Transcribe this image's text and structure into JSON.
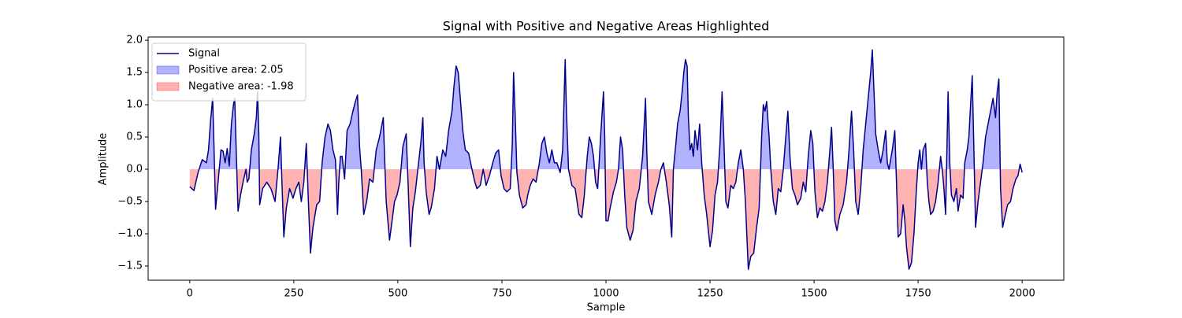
{
  "chart_data": {
    "type": "line",
    "title": "Signal with Positive and Negative Areas Highlighted",
    "x_label": "Sample",
    "y_label": "Amplitude",
    "xlim": [
      -100,
      2100
    ],
    "ylim": [
      -1.72,
      2.05
    ],
    "xticks": [
      0,
      250,
      500,
      750,
      1000,
      1250,
      1500,
      1750,
      2000
    ],
    "yticks": [
      {
        "value": -1.5,
        "label": "−1.5"
      },
      {
        "value": -1.0,
        "label": "−1.0"
      },
      {
        "value": -0.5,
        "label": "−0.5"
      },
      {
        "value": 0.0,
        "label": "0.0"
      },
      0.5,
      {
        "value": 1.0,
        "label": "1.0"
      },
      1.5,
      {
        "value": 2.0,
        "label": "2.0"
      }
    ],
    "legend": "upper left",
    "fills": [
      {
        "name": "Positive area: 2.05",
        "color": "#0000ff"
      },
      {
        "name": "Negative area: -1.98",
        "color": "#ff0000"
      }
    ],
    "x": [
      0,
      10,
      20,
      30,
      40,
      45,
      50,
      55,
      58,
      62,
      68,
      75,
      80,
      85,
      90,
      95,
      100,
      105,
      108,
      112,
      116,
      122,
      128,
      135,
      138,
      142,
      148,
      155,
      160,
      163,
      166,
      168,
      175,
      185,
      195,
      205,
      212,
      218,
      222,
      226,
      232,
      240,
      248,
      255,
      262,
      268,
      274,
      280,
      285,
      290,
      296,
      305,
      312,
      318,
      325,
      332,
      338,
      344,
      350,
      355,
      358,
      362,
      366,
      372,
      378,
      385,
      392,
      398,
      403,
      408,
      412,
      418,
      425,
      432,
      440,
      448,
      456,
      462,
      465,
      468,
      472,
      476,
      480,
      486,
      492,
      498,
      505,
      512,
      520,
      525,
      530,
      536,
      542,
      548,
      555,
      560,
      563,
      568,
      575,
      580,
      588,
      594,
      600,
      608,
      615,
      622,
      630,
      635,
      640,
      645,
      650,
      656,
      662,
      670,
      678,
      685,
      690,
      698,
      705,
      712,
      720,
      728,
      735,
      742,
      748,
      755,
      762,
      770,
      775,
      778,
      782,
      786,
      792,
      800,
      808,
      812,
      818,
      825,
      832,
      840,
      846,
      852,
      858,
      864,
      870,
      876,
      882,
      890,
      896,
      902,
      905,
      910,
      918,
      926,
      935,
      942,
      948,
      955,
      960,
      965,
      970,
      975,
      980,
      988,
      994,
      997,
      1000,
      1005,
      1010,
      1018,
      1025,
      1030,
      1035,
      1040,
      1045,
      1050,
      1058,
      1065,
      1072,
      1080,
      1088,
      1095,
      1098,
      1102,
      1110,
      1118,
      1126,
      1132,
      1138,
      1145,
      1152,
      1158,
      1162,
      1168,
      1172,
      1178,
      1183,
      1187,
      1191,
      1195,
      1198,
      1202,
      1206,
      1210,
      1214,
      1220,
      1225,
      1230,
      1236,
      1242,
      1250,
      1256,
      1262,
      1268,
      1274,
      1279,
      1283,
      1288,
      1293,
      1300,
      1306,
      1312,
      1318,
      1324,
      1330,
      1335,
      1342,
      1348,
      1355,
      1362,
      1368,
      1374,
      1378,
      1382,
      1386,
      1392,
      1396,
      1402,
      1408,
      1414,
      1420,
      1426,
      1432,
      1437,
      1442,
      1448,
      1454,
      1460,
      1468,
      1474,
      1480,
      1486,
      1492,
      1497,
      1502,
      1508,
      1514,
      1520,
      1526,
      1532,
      1538,
      1542,
      1546,
      1550,
      1555,
      1562,
      1570,
      1578,
      1584,
      1590,
      1595,
      1600,
      1606,
      1612,
      1618,
      1624,
      1630,
      1636,
      1640,
      1644,
      1648,
      1654,
      1660,
      1666,
      1672,
      1676,
      1680,
      1688,
      1694,
      1698,
      1702,
      1708,
      1714,
      1718,
      1722,
      1728,
      1734,
      1740,
      1746,
      1750,
      1754,
      1758,
      1762,
      1768,
      1772,
      1776,
      1780,
      1786,
      1792,
      1798,
      1804,
      1808,
      1812,
      1816,
      1822,
      1826,
      1830,
      1836,
      1842,
      1846,
      1852,
      1858,
      1862,
      1868,
      1872,
      1876,
      1880,
      1884,
      1888,
      1894,
      1900,
      1906,
      1912,
      1918,
      1924,
      1930,
      1936,
      1940,
      1944,
      1948,
      1953,
      1958,
      1965,
      1972,
      1978,
      1985,
      1990,
      1995,
      2000
    ],
    "series": [
      {
        "name": "Signal",
        "color": "#00008b",
        "values": [
          -0.27,
          -0.33,
          -0.05,
          0.15,
          0.1,
          0.3,
          0.75,
          1.1,
          0.4,
          -0.62,
          -0.2,
          0.3,
          0.28,
          0.1,
          0.32,
          0.05,
          0.7,
          1.0,
          1.1,
          0.2,
          -0.65,
          -0.4,
          -0.2,
          0.0,
          -0.2,
          -0.15,
          0.3,
          0.55,
          0.8,
          1.2,
          0.5,
          -0.55,
          -0.3,
          -0.2,
          -0.3,
          -0.5,
          0.0,
          0.5,
          -0.3,
          -1.05,
          -0.6,
          -0.3,
          -0.45,
          -0.3,
          -0.2,
          -0.5,
          -0.2,
          0.4,
          -0.5,
          -1.3,
          -0.9,
          -0.55,
          -0.5,
          0.1,
          0.5,
          0.7,
          0.6,
          0.3,
          0.15,
          -0.7,
          -0.2,
          0.2,
          0.2,
          -0.15,
          0.6,
          0.7,
          0.9,
          1.05,
          1.15,
          0.35,
          0.0,
          -0.7,
          -0.5,
          -0.15,
          -0.2,
          0.3,
          0.5,
          0.7,
          0.8,
          0.2,
          -0.5,
          -0.8,
          -1.1,
          -0.8,
          -0.5,
          -0.4,
          -0.2,
          0.35,
          0.55,
          -0.3,
          -1.2,
          -0.6,
          -0.35,
          0.0,
          0.4,
          0.8,
          0.1,
          -0.35,
          -0.7,
          -0.6,
          -0.3,
          0.2,
          0.0,
          0.3,
          0.2,
          0.6,
          0.9,
          1.3,
          1.6,
          1.5,
          1.1,
          0.6,
          0.3,
          0.25,
          0.0,
          -0.2,
          -0.3,
          -0.25,
          0.0,
          -0.25,
          -0.1,
          0.1,
          0.25,
          0.3,
          -0.1,
          -0.3,
          -0.35,
          -0.3,
          0.4,
          1.5,
          0.8,
          -0.05,
          -0.4,
          -0.6,
          -0.55,
          -0.4,
          -0.25,
          -0.15,
          -0.2,
          0.1,
          0.4,
          0.5,
          0.25,
          0.1,
          0.3,
          0.1,
          0.1,
          -0.05,
          0.3,
          1.7,
          0.9,
          0.0,
          -0.25,
          -0.3,
          -0.7,
          -0.75,
          -0.4,
          0.2,
          0.5,
          0.4,
          0.2,
          -0.2,
          -0.3,
          0.6,
          1.2,
          0.5,
          -0.8,
          -0.8,
          -0.6,
          -0.35,
          -0.2,
          0.0,
          0.5,
          0.3,
          -0.4,
          -0.9,
          -1.1,
          -0.95,
          -0.5,
          -0.3,
          0.2,
          1.1,
          0.3,
          -0.5,
          -0.7,
          -0.4,
          -0.2,
          0.0,
          0.1,
          -0.2,
          -0.55,
          -1.05,
          0.0,
          0.4,
          0.7,
          0.9,
          1.2,
          1.5,
          1.7,
          1.6,
          0.8,
          0.3,
          0.4,
          0.2,
          0.6,
          0.3,
          0.7,
          0.1,
          -0.4,
          -0.7,
          -1.2,
          -0.95,
          -0.4,
          -0.2,
          0.4,
          1.2,
          0.5,
          -0.5,
          -0.6,
          -0.25,
          -0.3,
          -0.2,
          0.1,
          0.3,
          0.0,
          -0.5,
          -1.55,
          -1.35,
          -1.3,
          -0.9,
          -0.6,
          0.5,
          1.0,
          0.9,
          1.05,
          0.5,
          0.0,
          -0.5,
          -0.7,
          -0.3,
          -0.35,
          0.0,
          0.5,
          0.9,
          0.2,
          -0.3,
          -0.4,
          -0.55,
          -0.45,
          -0.2,
          -0.35,
          0.2,
          0.6,
          0.4,
          -0.35,
          -0.75,
          -0.6,
          -0.65,
          -0.5,
          -0.2,
          0.3,
          0.65,
          0.0,
          -0.8,
          -0.95,
          -0.7,
          -0.55,
          -0.2,
          0.3,
          0.9,
          0.3,
          -0.5,
          -0.7,
          -0.3,
          0.3,
          0.7,
          1.1,
          1.5,
          1.85,
          1.2,
          0.55,
          0.3,
          0.1,
          0.3,
          0.6,
          0.1,
          0.0,
          0.3,
          0.6,
          -0.2,
          -1.05,
          -1.0,
          -0.55,
          -0.8,
          -1.2,
          -1.55,
          -1.45,
          -1.0,
          -0.3,
          0.1,
          0.3,
          0.0,
          0.3,
          0.4,
          -0.2,
          -0.5,
          -0.7,
          -0.65,
          -0.5,
          -0.2,
          0.2,
          0.0,
          -0.3,
          -0.7,
          1.2,
          0.1,
          -0.4,
          -0.5,
          -0.3,
          -0.65,
          -0.4,
          -0.45,
          0.1,
          0.3,
          0.5,
          1.0,
          1.45,
          0.3,
          -0.9,
          -0.5,
          -0.2,
          0.1,
          0.5,
          0.7,
          0.9,
          1.1,
          0.8,
          1.2,
          1.4,
          -0.3,
          -0.9,
          -0.75,
          -0.55,
          -0.5,
          -0.3,
          -0.15,
          -0.1,
          0.08,
          -0.05
        ]
      }
    ]
  }
}
